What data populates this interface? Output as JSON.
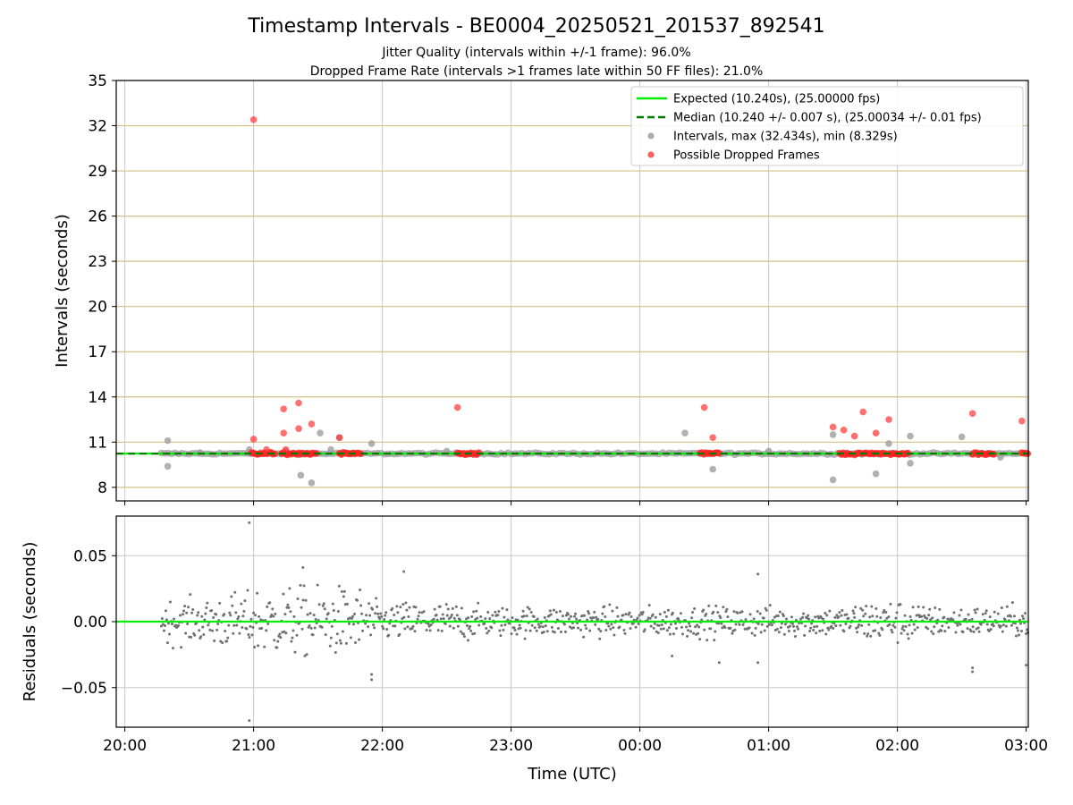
{
  "chart_data": [
    {
      "type": "scatter",
      "title": "Timestamp Intervals - BE0004_20250521_201537_892541",
      "subtitle_lines": [
        "Jitter Quality (intervals within +/-1 frame): 96.0%",
        "Dropped Frame Rate (intervals >1 frames late within 50 FF files): 21.0%"
      ],
      "ylabel": "Intervals (seconds)",
      "xlabel": "",
      "xlim": [
        "19:56",
        "03:01"
      ],
      "ylim": [
        7.1,
        35
      ],
      "yticks": [
        8,
        11,
        14,
        17,
        20,
        23,
        26,
        29,
        32,
        35
      ],
      "xticks": [
        "20:00",
        "21:00",
        "22:00",
        "23:00",
        "00:00",
        "01:00",
        "02:00",
        "03:00"
      ],
      "grid": true,
      "legend_placement": "top-right",
      "legend": [
        {
          "label": "Expected (10.240s), (25.00000 fps)",
          "kind": "line",
          "color": "#00ee00"
        },
        {
          "label": "Median (10.240 +/- 0.007 s), (25.00034 +/- 0.01 fps)",
          "kind": "dashed-line",
          "color": "#007a00"
        },
        {
          "label": "Intervals, max (32.434s), min (8.329s)",
          "kind": "marker",
          "color": "#9e9e9e"
        },
        {
          "label": "Possible Dropped Frames",
          "kind": "marker",
          "color": "#ff4444"
        }
      ],
      "expected_value": 10.24,
      "median_value": 10.24,
      "series_intervals": [
        {
          "t": "20:20",
          "v": 11.1
        },
        {
          "t": "20:20",
          "v": 9.4
        },
        {
          "t": "20:35",
          "v": 10.3
        },
        {
          "t": "20:58",
          "v": 10.5
        },
        {
          "t": "21:15",
          "v": 10.4
        },
        {
          "t": "21:22",
          "v": 8.8
        },
        {
          "t": "21:27",
          "v": 8.3
        },
        {
          "t": "21:31",
          "v": 11.6
        },
        {
          "t": "21:36",
          "v": 10.5
        },
        {
          "t": "21:40",
          "v": 11.3
        },
        {
          "t": "21:55",
          "v": 10.9
        },
        {
          "t": "22:30",
          "v": 10.4
        },
        {
          "t": "00:21",
          "v": 11.6
        },
        {
          "t": "00:34",
          "v": 9.2
        },
        {
          "t": "01:00",
          "v": 10.4
        },
        {
          "t": "01:30",
          "v": 11.5
        },
        {
          "t": "01:30",
          "v": 8.5
        },
        {
          "t": "01:50",
          "v": 8.9
        },
        {
          "t": "01:56",
          "v": 10.9
        },
        {
          "t": "02:06",
          "v": 11.4
        },
        {
          "t": "02:06",
          "v": 9.6
        },
        {
          "t": "02:30",
          "v": 11.35
        },
        {
          "t": "02:48",
          "v": 10.0
        }
      ],
      "series_dropped": [
        {
          "t": "21:00",
          "v": 32.4
        },
        {
          "t": "21:00",
          "v": 11.2
        },
        {
          "t": "21:06",
          "v": 10.5
        },
        {
          "t": "21:14",
          "v": 13.2
        },
        {
          "t": "21:14",
          "v": 11.6
        },
        {
          "t": "21:15",
          "v": 10.5
        },
        {
          "t": "21:21",
          "v": 13.6
        },
        {
          "t": "21:21",
          "v": 11.9
        },
        {
          "t": "21:27",
          "v": 12.2
        },
        {
          "t": "21:40",
          "v": 11.3
        },
        {
          "t": "22:35",
          "v": 13.3
        },
        {
          "t": "00:30",
          "v": 13.3
        },
        {
          "t": "00:34",
          "v": 11.3
        },
        {
          "t": "01:30",
          "v": 12.0
        },
        {
          "t": "01:35",
          "v": 11.8
        },
        {
          "t": "01:40",
          "v": 11.4
        },
        {
          "t": "01:44",
          "v": 13.0
        },
        {
          "t": "01:50",
          "v": 11.6
        },
        {
          "t": "01:56",
          "v": 12.5
        },
        {
          "t": "02:35",
          "v": 12.9
        },
        {
          "t": "02:58",
          "v": 12.4
        }
      ],
      "dropped_clusters": [
        {
          "from": "20:59",
          "to": "21:10"
        },
        {
          "from": "21:13",
          "to": "21:30"
        },
        {
          "from": "21:40",
          "to": "21:50"
        },
        {
          "from": "22:35",
          "to": "22:45"
        },
        {
          "from": "00:28",
          "to": "00:37"
        },
        {
          "from": "01:33",
          "to": "01:39"
        },
        {
          "from": "01:40",
          "to": "01:48"
        },
        {
          "from": "01:48",
          "to": "01:55"
        },
        {
          "from": "01:56",
          "to": "02:05"
        },
        {
          "from": "02:35",
          "to": "02:45"
        },
        {
          "from": "02:58",
          "to": "03:01"
        }
      ]
    },
    {
      "type": "scatter",
      "title": "",
      "xlabel": "Time (UTC)",
      "ylabel": "Residuals (seconds)",
      "xlim": [
        "19:56",
        "03:01"
      ],
      "ylim": [
        -0.08,
        0.08
      ],
      "yticks": [
        -0.05,
        0.0,
        0.05
      ],
      "ytick_labels": [
        "−0.05",
        "0.00",
        "0.05"
      ],
      "xticks": [
        "20:00",
        "21:00",
        "22:00",
        "23:00",
        "00:00",
        "01:00",
        "02:00",
        "03:00"
      ],
      "grid": true,
      "zero_line_color": "#00ee00",
      "point_color": "#707070",
      "outliers": [
        {
          "t": "20:58",
          "v": 0.075
        },
        {
          "t": "20:58",
          "v": -0.075
        },
        {
          "t": "21:23",
          "v": 0.041
        },
        {
          "t": "21:55",
          "v": -0.044
        },
        {
          "t": "21:55",
          "v": -0.04
        },
        {
          "t": "22:10",
          "v": 0.038
        },
        {
          "t": "00:15",
          "v": -0.026
        },
        {
          "t": "00:37",
          "v": -0.031
        },
        {
          "t": "00:55",
          "v": 0.036
        },
        {
          "t": "00:55",
          "v": -0.031
        },
        {
          "t": "02:35",
          "v": -0.035
        },
        {
          "t": "02:35",
          "v": -0.038
        },
        {
          "t": "03:00",
          "v": -0.033
        }
      ],
      "band_profile": [
        {
          "from": "20:17",
          "to": "20:40",
          "spread": 0.01
        },
        {
          "from": "20:40",
          "to": "21:00",
          "spread": 0.013
        },
        {
          "from": "21:00",
          "to": "21:55",
          "spread": 0.016
        },
        {
          "from": "21:55",
          "to": "22:40",
          "spread": 0.009
        },
        {
          "from": "22:40",
          "to": "01:40",
          "spread": 0.007
        },
        {
          "from": "01:40",
          "to": "02:10",
          "spread": 0.01
        },
        {
          "from": "02:10",
          "to": "03:01",
          "spread": 0.007
        }
      ]
    }
  ]
}
